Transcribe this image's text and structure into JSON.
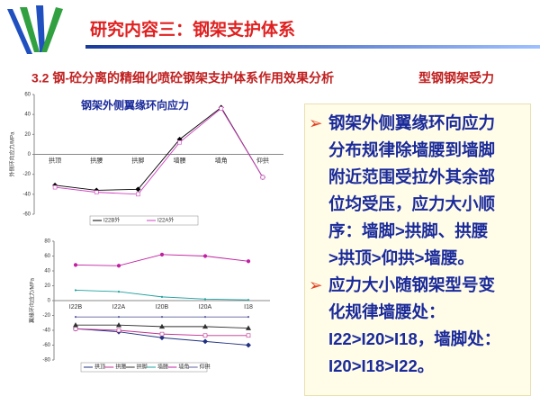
{
  "header": {
    "title": "研究内容三：钢架支护体系"
  },
  "subheader": {
    "section": "3.2 钢-砼分离的精细化喷砼钢架支护体系作用效果分析",
    "topic": "型钢钢架受力"
  },
  "chart_data": [
    {
      "type": "line",
      "annotation": "钢架外侧翼缘环向应力",
      "ylabel": "外侧环向应力/MPa",
      "categories": [
        "拱顶",
        "拱腰",
        "拱脚",
        "墙腰",
        "墙角",
        "仰拱"
      ],
      "ylim": [
        -60,
        60
      ],
      "yticks": [
        60,
        40,
        20,
        0,
        -20,
        -40,
        -60
      ],
      "series": [
        {
          "name": "I22B外",
          "color": "#000000",
          "values": [
            -31,
            -36,
            -35,
            15,
            47,
            -23
          ]
        },
        {
          "name": "I22A外",
          "color": "#d040c0",
          "values": [
            -33,
            -38,
            -40,
            12,
            46,
            -23
          ]
        }
      ]
    },
    {
      "type": "line",
      "ylabel": "翼缘环向应力/MPa",
      "categories": [
        "I22B",
        "I22A",
        "I20B",
        "I20A",
        "I18"
      ],
      "ylim": [
        -80,
        80
      ],
      "yticks": [
        80,
        60,
        40,
        20,
        0,
        -20,
        -40,
        -60,
        -80
      ],
      "series": [
        {
          "name": "拱顶",
          "color": "#203080",
          "values": [
            -38,
            -42,
            -50,
            -55,
            -60
          ]
        },
        {
          "name": "拱腰",
          "color": "#c03090",
          "values": [
            -38,
            -40,
            -45,
            -47,
            -47
          ]
        },
        {
          "name": "拱脚",
          "color": "#303030",
          "values": [
            -33,
            -33,
            -35,
            -35,
            -37
          ]
        },
        {
          "name": "墙腰",
          "color": "#20a0a0",
          "values": [
            14,
            12,
            5,
            2,
            1
          ]
        },
        {
          "name": "墙角",
          "color": "#c020a0",
          "values": [
            48,
            47,
            62,
            60,
            53
          ]
        },
        {
          "name": "仰拱",
          "color": "#6060a0",
          "values": [
            -22,
            -22,
            -22,
            -22,
            -22
          ]
        }
      ]
    }
  ],
  "textbox": {
    "bullets": [
      {
        "lines": [
          "钢架外侧翼缘环向应力",
          "分布规律除墙腰到墙脚",
          "附近范围受拉外其余部",
          "位均受压，应力大小顺",
          "序：墙脚>拱脚、拱腰",
          ">拱顶>仰拱>墙腰。"
        ]
      },
      {
        "lines": [
          "应力大小随钢架型号变",
          "化规律墙腰处：",
          "I22>I20>I18，墙脚处：",
          "I20>I18>I22。"
        ]
      }
    ]
  }
}
